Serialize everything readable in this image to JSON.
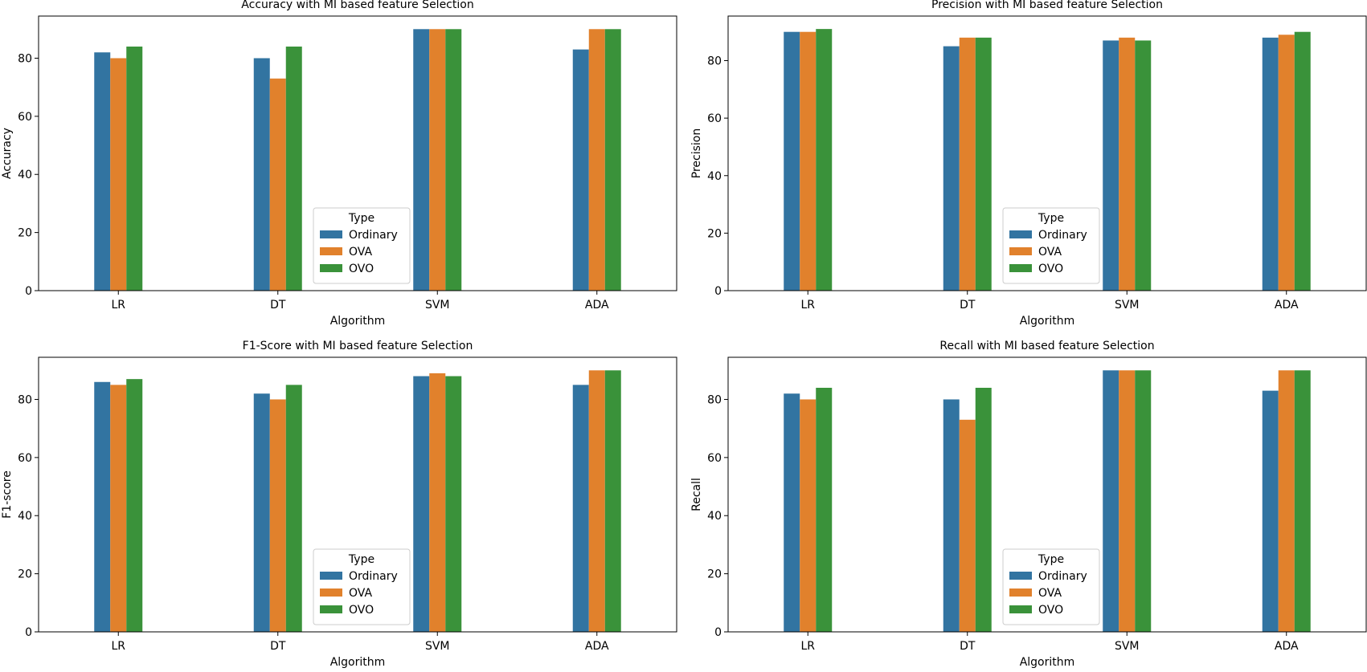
{
  "chart_data": [
    {
      "type": "bar",
      "title": "Accuracy with MI based feature Selection",
      "xlabel": "Algorithm",
      "ylabel": "Accuracy",
      "categories": [
        "LR",
        "DT",
        "SVM",
        "ADA"
      ],
      "ylim": [
        0,
        94.5
      ],
      "yticks": [
        0,
        20,
        40,
        60,
        80
      ],
      "legend": {
        "title": "Type",
        "placement": "lower-center"
      },
      "series": [
        {
          "name": "Ordinary",
          "color": "#3274a1",
          "values": [
            82,
            80,
            90,
            83
          ]
        },
        {
          "name": "OVA",
          "color": "#e1812c",
          "values": [
            80,
            73,
            90,
            90
          ]
        },
        {
          "name": "OVO",
          "color": "#3a923a",
          "values": [
            84,
            84,
            90,
            90
          ]
        }
      ]
    },
    {
      "type": "bar",
      "title": "Precision with MI based feature Selection",
      "xlabel": "Algorithm",
      "ylabel": "Precision",
      "categories": [
        "LR",
        "DT",
        "SVM",
        "ADA"
      ],
      "ylim": [
        0,
        95.5
      ],
      "yticks": [
        0,
        20,
        40,
        60,
        80
      ],
      "legend": {
        "title": "Type",
        "placement": "lower-center"
      },
      "series": [
        {
          "name": "Ordinary",
          "color": "#3274a1",
          "values": [
            90,
            85,
            87,
            88
          ]
        },
        {
          "name": "OVA",
          "color": "#e1812c",
          "values": [
            90,
            88,
            88,
            89
          ]
        },
        {
          "name": "OVO",
          "color": "#3a923a",
          "values": [
            91,
            88,
            87,
            90
          ]
        }
      ]
    },
    {
      "type": "bar",
      "title": "F1-Score with MI based feature Selection",
      "xlabel": "Algorithm",
      "ylabel": "F1-score",
      "categories": [
        "LR",
        "DT",
        "SVM",
        "ADA"
      ],
      "ylim": [
        0,
        94.5
      ],
      "yticks": [
        0,
        20,
        40,
        60,
        80
      ],
      "legend": {
        "title": "Type",
        "placement": "lower-center"
      },
      "series": [
        {
          "name": "Ordinary",
          "color": "#3274a1",
          "values": [
            86,
            82,
            88,
            85
          ]
        },
        {
          "name": "OVA",
          "color": "#e1812c",
          "values": [
            85,
            80,
            89,
            90
          ]
        },
        {
          "name": "OVO",
          "color": "#3a923a",
          "values": [
            87,
            85,
            88,
            90
          ]
        }
      ]
    },
    {
      "type": "bar",
      "title": "Recall with MI based feature Selection",
      "xlabel": "Algorithm",
      "ylabel": "Recall",
      "categories": [
        "LR",
        "DT",
        "SVM",
        "ADA"
      ],
      "ylim": [
        0,
        94.5
      ],
      "yticks": [
        0,
        20,
        40,
        60,
        80
      ],
      "legend": {
        "title": "Type",
        "placement": "lower-center"
      },
      "series": [
        {
          "name": "Ordinary",
          "color": "#3274a1",
          "values": [
            82,
            80,
            90,
            83
          ]
        },
        {
          "name": "OVA",
          "color": "#e1812c",
          "values": [
            80,
            73,
            90,
            90
          ]
        },
        {
          "name": "OVO",
          "color": "#3a923a",
          "values": [
            84,
            84,
            90,
            90
          ]
        }
      ]
    }
  ]
}
